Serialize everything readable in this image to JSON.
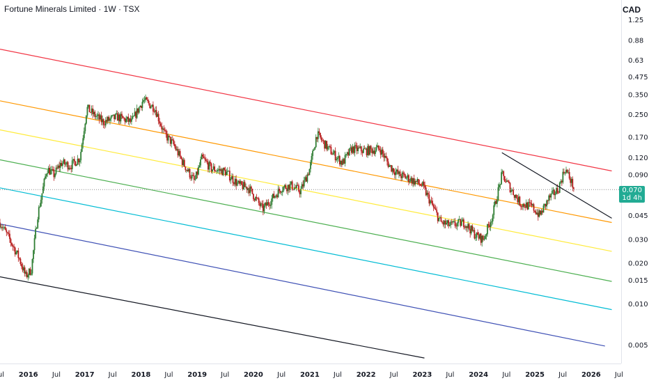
{
  "header": {
    "title": "Fortune Minerals Limited · 1W · TSX",
    "currency": "CAD"
  },
  "last_price": {
    "value": "0.070",
    "countdown": "1d 4h",
    "color": "#22ab94"
  },
  "chart_data": {
    "type": "candlestick",
    "y_scale": "log",
    "ylim": [
      0.0042,
      1.45
    ],
    "xlim": [
      "2015-07-01",
      "2026-07-15"
    ],
    "y_ticks": [
      "1.25",
      "0.88",
      "0.63",
      "0.475",
      "0.350",
      "0.250",
      "0.170",
      "0.120",
      "0.090",
      "0.045",
      "0.030",
      "0.020",
      "0.015",
      "0.010",
      "0.005"
    ],
    "x_ticks": [
      {
        "label": "Jul",
        "date": "2015-07-01",
        "year": false
      },
      {
        "label": "2016",
        "date": "2016-01-01",
        "year": true
      },
      {
        "label": "Jul",
        "date": "2016-07-01",
        "year": false
      },
      {
        "label": "2017",
        "date": "2017-01-01",
        "year": true
      },
      {
        "label": "Jul",
        "date": "2017-07-01",
        "year": false
      },
      {
        "label": "2018",
        "date": "2018-01-01",
        "year": true
      },
      {
        "label": "Jul",
        "date": "2018-07-01",
        "year": false
      },
      {
        "label": "2019",
        "date": "2019-01-01",
        "year": true
      },
      {
        "label": "Jul",
        "date": "2019-07-01",
        "year": false
      },
      {
        "label": "2020",
        "date": "2020-01-01",
        "year": true
      },
      {
        "label": "Jul",
        "date": "2020-07-01",
        "year": false
      },
      {
        "label": "2021",
        "date": "2021-01-01",
        "year": true
      },
      {
        "label": "Jul",
        "date": "2021-07-01",
        "year": false
      },
      {
        "label": "2022",
        "date": "2022-01-01",
        "year": true
      },
      {
        "label": "Jul",
        "date": "2022-07-01",
        "year": false
      },
      {
        "label": "2023",
        "date": "2023-01-01",
        "year": true
      },
      {
        "label": "Jul",
        "date": "2023-07-01",
        "year": false
      },
      {
        "label": "2024",
        "date": "2024-01-01",
        "year": true
      },
      {
        "label": "Jul",
        "date": "2024-07-01",
        "year": false
      },
      {
        "label": "2025",
        "date": "2025-01-01",
        "year": true
      },
      {
        "label": "Jul",
        "date": "2025-07-01",
        "year": false
      },
      {
        "label": "2026",
        "date": "2026-01-01",
        "year": true
      },
      {
        "label": "Jul",
        "date": "2026-07-01",
        "year": false
      }
    ],
    "colors": {
      "up": "#2e7d32",
      "down": "#b71c1c"
    },
    "price_path": [
      [
        "2015-07-01",
        0.04
      ],
      [
        "2015-09-01",
        0.03
      ],
      [
        "2015-11-01",
        0.022
      ],
      [
        "2015-12-15",
        0.016
      ],
      [
        "2016-01-20",
        0.018
      ],
      [
        "2016-03-01",
        0.045
      ],
      [
        "2016-05-01",
        0.1
      ],
      [
        "2016-06-15",
        0.09
      ],
      [
        "2016-08-01",
        0.11
      ],
      [
        "2016-10-01",
        0.105
      ],
      [
        "2016-12-01",
        0.12
      ],
      [
        "2017-01-15",
        0.28
      ],
      [
        "2017-03-01",
        0.25
      ],
      [
        "2017-05-01",
        0.22
      ],
      [
        "2017-08-01",
        0.24
      ],
      [
        "2017-11-01",
        0.22
      ],
      [
        "2018-01-15",
        0.32
      ],
      [
        "2018-04-01",
        0.28
      ],
      [
        "2018-06-01",
        0.18
      ],
      [
        "2018-08-01",
        0.15
      ],
      [
        "2018-10-01",
        0.11
      ],
      [
        "2018-12-15",
        0.08
      ],
      [
        "2019-02-01",
        0.12
      ],
      [
        "2019-04-01",
        0.1
      ],
      [
        "2019-07-01",
        0.095
      ],
      [
        "2019-10-01",
        0.075
      ],
      [
        "2019-12-01",
        0.072
      ],
      [
        "2020-03-01",
        0.05
      ],
      [
        "2020-05-01",
        0.06
      ],
      [
        "2020-07-01",
        0.072
      ],
      [
        "2020-09-01",
        0.075
      ],
      [
        "2020-11-01",
        0.068
      ],
      [
        "2021-01-01",
        0.1
      ],
      [
        "2021-02-15",
        0.18
      ],
      [
        "2021-05-01",
        0.14
      ],
      [
        "2021-08-01",
        0.11
      ],
      [
        "2021-10-01",
        0.14
      ],
      [
        "2022-01-01",
        0.135
      ],
      [
        "2022-04-01",
        0.14
      ],
      [
        "2022-06-01",
        0.105
      ],
      [
        "2022-08-01",
        0.09
      ],
      [
        "2022-10-01",
        0.085
      ],
      [
        "2023-01-01",
        0.075
      ],
      [
        "2023-03-01",
        0.055
      ],
      [
        "2023-05-01",
        0.04
      ],
      [
        "2023-07-01",
        0.038
      ],
      [
        "2023-10-01",
        0.04
      ],
      [
        "2023-12-15",
        0.032
      ],
      [
        "2024-02-01",
        0.03
      ],
      [
        "2024-04-01",
        0.045
      ],
      [
        "2024-06-01",
        0.09
      ],
      [
        "2024-08-01",
        0.07
      ],
      [
        "2024-10-01",
        0.055
      ],
      [
        "2024-12-15",
        0.052
      ],
      [
        "2025-02-01",
        0.045
      ],
      [
        "2025-04-01",
        0.06
      ],
      [
        "2025-06-01",
        0.07
      ],
      [
        "2025-07-15",
        0.1
      ],
      [
        "2025-08-15",
        0.085
      ],
      [
        "2025-09-15",
        0.07
      ]
    ],
    "channel_lines": [
      {
        "color": "#f23645",
        "p1": [
          "2015-07-01",
          0.76
        ],
        "p2": [
          "2026-05-15",
          0.096
        ]
      },
      {
        "color": "#ff9800",
        "p1": [
          "2015-07-01",
          0.316
        ],
        "p2": [
          "2026-05-15",
          0.04
        ]
      },
      {
        "color": "#ffeb3b",
        "p1": [
          "2015-07-01",
          0.193
        ],
        "p2": [
          "2026-05-15",
          0.0245
        ]
      },
      {
        "color": "#4caf50",
        "p1": [
          "2015-07-01",
          0.116
        ],
        "p2": [
          "2026-05-15",
          0.0147
        ]
      },
      {
        "color": "#00bcd4",
        "p1": [
          "2015-07-01",
          0.072
        ],
        "p2": [
          "2026-05-15",
          0.0091
        ]
      },
      {
        "color": "#3f51b5",
        "p1": [
          "2015-07-01",
          0.039
        ],
        "p2": [
          "2026-04-01",
          0.0049
        ]
      },
      {
        "color": "#131722",
        "p1": [
          "2015-07-01",
          0.0159
        ],
        "p2": [
          "2023-01-15",
          0.004
        ]
      }
    ],
    "trend_lines": [
      {
        "color": "#131722",
        "p1": [
          "2024-06-01",
          0.131
        ],
        "p2": [
          "2026-05-15",
          0.043
        ]
      }
    ]
  }
}
